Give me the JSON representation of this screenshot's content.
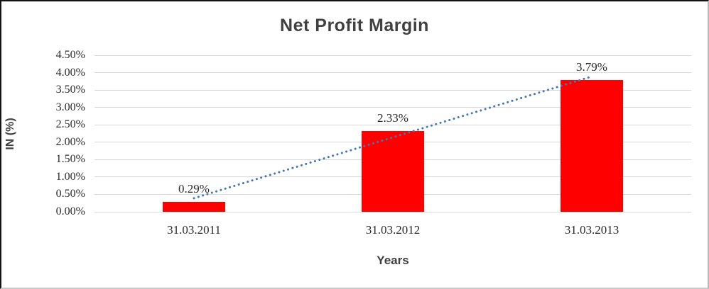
{
  "chart_data": {
    "type": "bar",
    "title": "Net Profit Margin",
    "xlabel": "Years",
    "ylabel": "IN (%)",
    "categories": [
      "31.03.2011",
      "31.03.2012",
      "31.03.2013"
    ],
    "values": [
      0.29,
      2.33,
      3.79
    ],
    "data_labels": [
      "0.29%",
      "2.33%",
      "3.79%"
    ],
    "y_ticks": [
      "4.50%",
      "4.00%",
      "3.50%",
      "3.00%",
      "2.50%",
      "2.00%",
      "1.50%",
      "1.00%",
      "0.50%",
      "0.00%"
    ],
    "ylim": [
      0,
      4.5
    ],
    "grid": true,
    "legend_position": "none",
    "bar_color": "#ff0000",
    "gridline_color": "#d9d9d9",
    "axis_line_color": "#d9d9d9",
    "tick_text_color": "#2b2b2b",
    "title_color": "#404040",
    "trendline": {
      "type": "linear",
      "style": "dotted",
      "color": "#4576b8",
      "start_value": 0.39,
      "end_value": 3.89
    }
  }
}
